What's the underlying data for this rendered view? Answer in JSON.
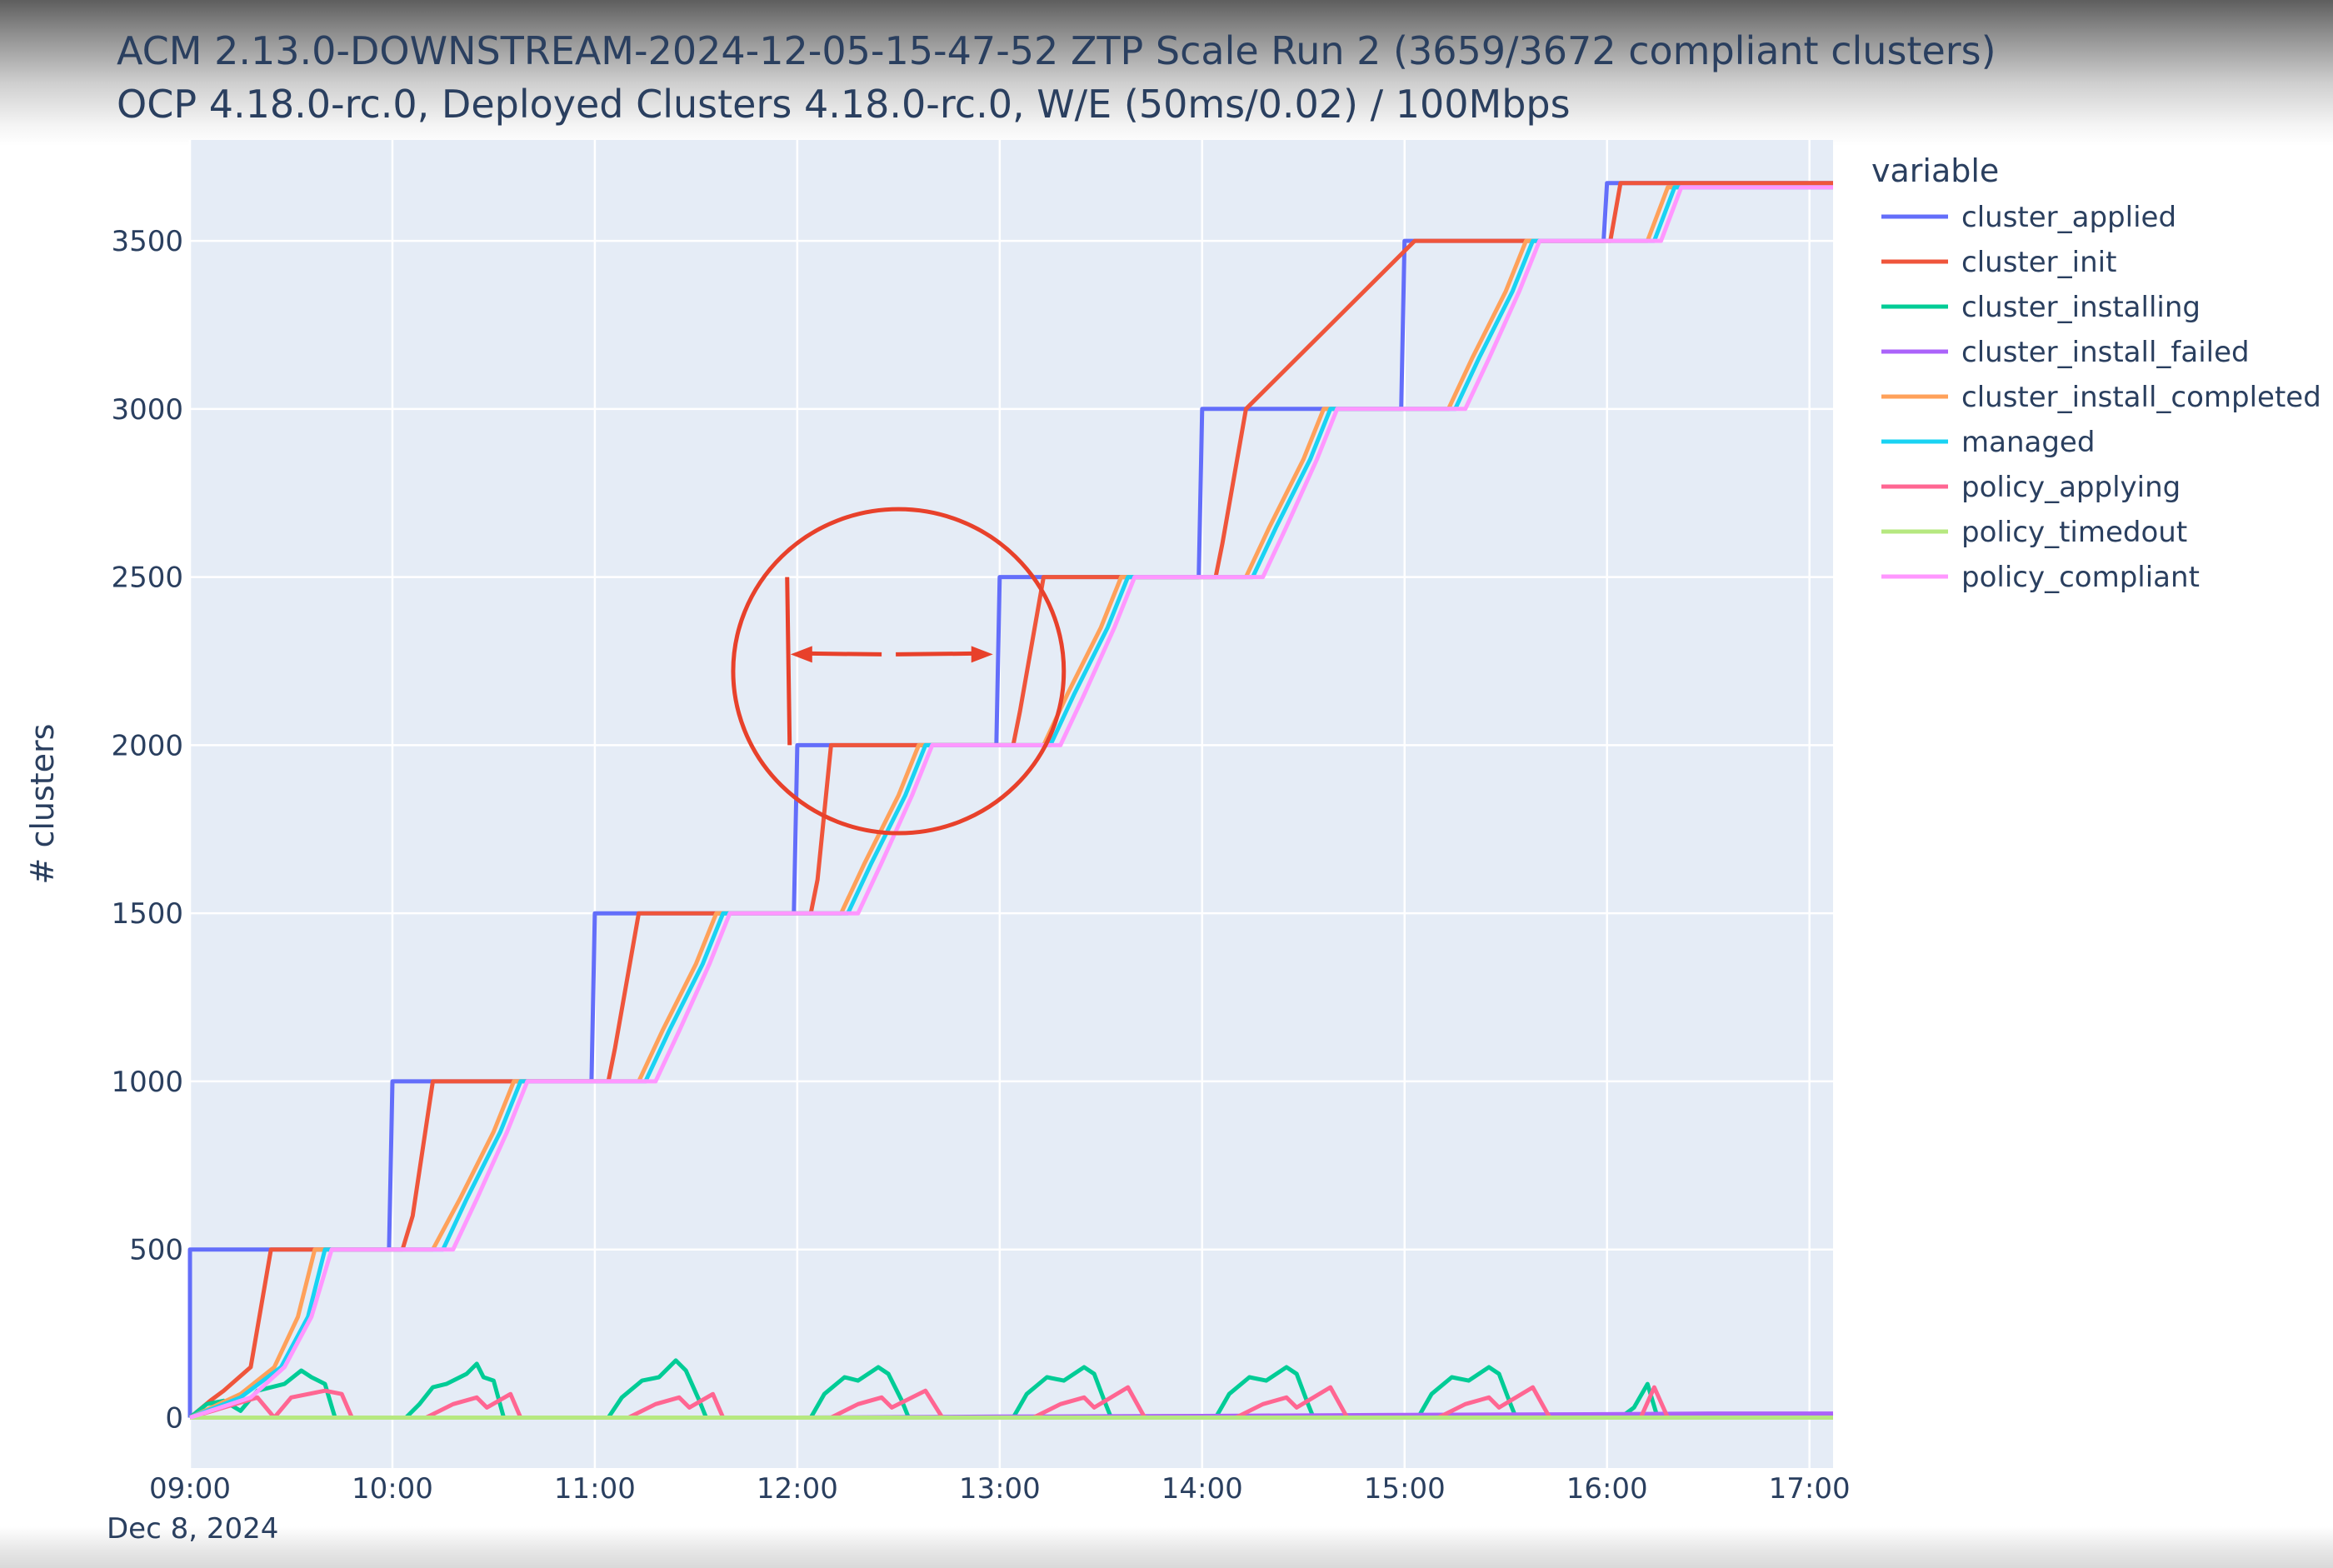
{
  "title": "ACM 2.13.0-DOWNSTREAM-2024-12-05-15-47-52 ZTP Scale Run 2 (3659/3672 compliant clusters)",
  "subtitle": "OCP 4.18.0-rc.0, Deployed Clusters 4.18.0-rc.0, W/E (50ms/0.02) / 100Mbps",
  "chart_data": {
    "type": "line",
    "xlabel": "",
    "ylabel": "# clusters",
    "x_date_label": "Dec 8, 2024",
    "xlim": [
      "09:00",
      "17:07"
    ],
    "ylim": [
      -150,
      3800
    ],
    "grid": true,
    "background_color": "#e5ecf6",
    "legend_title": "variable",
    "legend_placement": "right",
    "x_ticks": [
      "09:00",
      "10:00",
      "11:00",
      "12:00",
      "13:00",
      "14:00",
      "15:00",
      "16:00",
      "17:00"
    ],
    "y_ticks": [
      0,
      500,
      1000,
      1500,
      2000,
      2500,
      3000,
      3500
    ],
    "series": [
      {
        "name": "cluster_applied",
        "color": "#636efa",
        "points": [
          [
            "09:00",
            0
          ],
          [
            "09:00",
            500
          ],
          [
            "09:59",
            500
          ],
          [
            "10:00",
            1000
          ],
          [
            "10:59",
            1000
          ],
          [
            "11:00",
            1500
          ],
          [
            "11:59",
            1500
          ],
          [
            "12:00",
            2000
          ],
          [
            "12:59",
            2000
          ],
          [
            "13:00",
            2500
          ],
          [
            "13:59",
            2500
          ],
          [
            "14:00",
            3000
          ],
          [
            "14:59",
            3000
          ],
          [
            "15:00",
            3500
          ],
          [
            "15:59",
            3500
          ],
          [
            "16:00",
            3672
          ],
          [
            "17:07",
            3672
          ]
        ]
      },
      {
        "name": "cluster_init",
        "color": "#ef553b",
        "points": [
          [
            "09:00",
            0
          ],
          [
            "09:06",
            50
          ],
          [
            "09:10",
            80
          ],
          [
            "09:18",
            150
          ],
          [
            "09:24",
            500
          ],
          [
            "10:03",
            500
          ],
          [
            "10:06",
            600
          ],
          [
            "10:12",
            1000
          ],
          [
            "11:04",
            1000
          ],
          [
            "11:06",
            1100
          ],
          [
            "11:13",
            1500
          ],
          [
            "12:04",
            1500
          ],
          [
            "12:06",
            1600
          ],
          [
            "12:10",
            2000
          ],
          [
            "13:04",
            2000
          ],
          [
            "13:06",
            2100
          ],
          [
            "13:13",
            2500
          ],
          [
            "14:04",
            2500
          ],
          [
            "14:06",
            2600
          ],
          [
            "14:13",
            3000
          ],
          [
            "15:03",
            3500
          ],
          [
            "16:01",
            3500
          ],
          [
            "16:04",
            3672
          ],
          [
            "17:07",
            3672
          ]
        ]
      },
      {
        "name": "cluster_installing",
        "color": "#00cc96",
        "points": [
          [
            "09:00",
            0
          ],
          [
            "09:05",
            40
          ],
          [
            "09:10",
            50
          ],
          [
            "09:15",
            20
          ],
          [
            "09:20",
            80
          ],
          [
            "09:28",
            100
          ],
          [
            "09:33",
            140
          ],
          [
            "09:36",
            120
          ],
          [
            "09:40",
            100
          ],
          [
            "09:43",
            0
          ],
          [
            "10:04",
            0
          ],
          [
            "10:08",
            40
          ],
          [
            "10:12",
            90
          ],
          [
            "10:16",
            100
          ],
          [
            "10:22",
            130
          ],
          [
            "10:25",
            160
          ],
          [
            "10:27",
            120
          ],
          [
            "10:30",
            110
          ],
          [
            "10:33",
            0
          ],
          [
            "11:04",
            0
          ],
          [
            "11:08",
            60
          ],
          [
            "11:14",
            110
          ],
          [
            "11:19",
            120
          ],
          [
            "11:24",
            170
          ],
          [
            "11:27",
            140
          ],
          [
            "11:31",
            50
          ],
          [
            "11:33",
            0
          ],
          [
            "12:04",
            0
          ],
          [
            "12:08",
            70
          ],
          [
            "12:14",
            120
          ],
          [
            "12:18",
            110
          ],
          [
            "12:24",
            150
          ],
          [
            "12:27",
            130
          ],
          [
            "12:31",
            50
          ],
          [
            "12:33",
            0
          ],
          [
            "13:04",
            0
          ],
          [
            "13:08",
            70
          ],
          [
            "13:14",
            120
          ],
          [
            "13:19",
            110
          ],
          [
            "13:25",
            150
          ],
          [
            "13:28",
            130
          ],
          [
            "13:31",
            50
          ],
          [
            "13:33",
            0
          ],
          [
            "14:04",
            0
          ],
          [
            "14:08",
            70
          ],
          [
            "14:14",
            120
          ],
          [
            "14:19",
            110
          ],
          [
            "14:25",
            150
          ],
          [
            "14:28",
            130
          ],
          [
            "14:31",
            50
          ],
          [
            "14:33",
            0
          ],
          [
            "15:04",
            0
          ],
          [
            "15:08",
            70
          ],
          [
            "15:14",
            120
          ],
          [
            "15:19",
            110
          ],
          [
            "15:25",
            150
          ],
          [
            "15:28",
            130
          ],
          [
            "15:31",
            50
          ],
          [
            "15:33",
            0
          ],
          [
            "16:04",
            0
          ],
          [
            "16:08",
            30
          ],
          [
            "16:12",
            100
          ],
          [
            "16:15",
            0
          ],
          [
            "17:07",
            0
          ]
        ]
      },
      {
        "name": "cluster_install_failed",
        "color": "#ab63fa",
        "points": [
          [
            "09:00",
            0
          ],
          [
            "10:00",
            0
          ],
          [
            "11:00",
            0
          ],
          [
            "12:00",
            0
          ],
          [
            "13:00",
            3
          ],
          [
            "14:00",
            5
          ],
          [
            "15:00",
            8
          ],
          [
            "16:00",
            10
          ],
          [
            "16:30",
            12
          ],
          [
            "17:07",
            12
          ]
        ]
      },
      {
        "name": "cluster_install_completed",
        "color": "#ffa15a",
        "points": [
          [
            "09:00",
            0
          ],
          [
            "09:15",
            70
          ],
          [
            "09:25",
            150
          ],
          [
            "09:32",
            300
          ],
          [
            "09:37",
            500
          ],
          [
            "10:12",
            500
          ],
          [
            "10:20",
            650
          ],
          [
            "10:30",
            850
          ],
          [
            "10:36",
            1000
          ],
          [
            "11:13",
            1000
          ],
          [
            "11:20",
            1150
          ],
          [
            "11:30",
            1350
          ],
          [
            "11:36",
            1500
          ],
          [
            "12:13",
            1500
          ],
          [
            "12:20",
            1650
          ],
          [
            "12:30",
            1850
          ],
          [
            "12:36",
            2000
          ],
          [
            "13:13",
            2000
          ],
          [
            "13:20",
            2150
          ],
          [
            "13:30",
            2350
          ],
          [
            "13:36",
            2500
          ],
          [
            "14:13",
            2500
          ],
          [
            "14:20",
            2650
          ],
          [
            "14:30",
            2850
          ],
          [
            "14:36",
            3000
          ],
          [
            "15:13",
            3000
          ],
          [
            "15:20",
            3150
          ],
          [
            "15:30",
            3350
          ],
          [
            "15:36",
            3500
          ],
          [
            "16:12",
            3500
          ],
          [
            "16:18",
            3659
          ],
          [
            "17:07",
            3659
          ]
        ]
      },
      {
        "name": "managed",
        "color": "#19d3f3",
        "points": [
          [
            "09:00",
            0
          ],
          [
            "09:15",
            60
          ],
          [
            "09:27",
            150
          ],
          [
            "09:35",
            300
          ],
          [
            "09:40",
            500
          ],
          [
            "10:15",
            500
          ],
          [
            "10:22",
            650
          ],
          [
            "10:32",
            850
          ],
          [
            "10:38",
            1000
          ],
          [
            "11:15",
            1000
          ],
          [
            "11:22",
            1150
          ],
          [
            "11:32",
            1350
          ],
          [
            "11:38",
            1500
          ],
          [
            "12:15",
            1500
          ],
          [
            "12:22",
            1650
          ],
          [
            "12:32",
            1850
          ],
          [
            "12:38",
            2000
          ],
          [
            "13:15",
            2000
          ],
          [
            "13:22",
            2150
          ],
          [
            "13:32",
            2350
          ],
          [
            "13:38",
            2500
          ],
          [
            "14:15",
            2500
          ],
          [
            "14:22",
            2650
          ],
          [
            "14:32",
            2850
          ],
          [
            "14:38",
            3000
          ],
          [
            "15:15",
            3000
          ],
          [
            "15:22",
            3150
          ],
          [
            "15:32",
            3350
          ],
          [
            "15:38",
            3500
          ],
          [
            "16:14",
            3500
          ],
          [
            "16:20",
            3659
          ],
          [
            "17:07",
            3659
          ]
        ]
      },
      {
        "name": "policy_applying",
        "color": "#ff6692",
        "points": [
          [
            "09:00",
            0
          ],
          [
            "09:10",
            30
          ],
          [
            "09:20",
            60
          ],
          [
            "09:25",
            0
          ],
          [
            "09:30",
            60
          ],
          [
            "09:40",
            80
          ],
          [
            "09:45",
            70
          ],
          [
            "09:48",
            0
          ],
          [
            "10:10",
            0
          ],
          [
            "10:18",
            40
          ],
          [
            "10:25",
            60
          ],
          [
            "10:28",
            30
          ],
          [
            "10:35",
            70
          ],
          [
            "10:38",
            0
          ],
          [
            "11:10",
            0
          ],
          [
            "11:18",
            40
          ],
          [
            "11:25",
            60
          ],
          [
            "11:28",
            30
          ],
          [
            "11:35",
            70
          ],
          [
            "11:38",
            0
          ],
          [
            "12:10",
            0
          ],
          [
            "12:18",
            40
          ],
          [
            "12:25",
            60
          ],
          [
            "12:28",
            30
          ],
          [
            "12:38",
            80
          ],
          [
            "12:43",
            0
          ],
          [
            "13:10",
            0
          ],
          [
            "13:18",
            40
          ],
          [
            "13:25",
            60
          ],
          [
            "13:28",
            30
          ],
          [
            "13:38",
            90
          ],
          [
            "13:43",
            0
          ],
          [
            "14:10",
            0
          ],
          [
            "14:18",
            40
          ],
          [
            "14:25",
            60
          ],
          [
            "14:28",
            30
          ],
          [
            "14:38",
            90
          ],
          [
            "14:43",
            0
          ],
          [
            "15:10",
            0
          ],
          [
            "15:18",
            40
          ],
          [
            "15:25",
            60
          ],
          [
            "15:28",
            30
          ],
          [
            "15:38",
            90
          ],
          [
            "15:43",
            0
          ],
          [
            "16:10",
            0
          ],
          [
            "16:14",
            90
          ],
          [
            "16:18",
            0
          ],
          [
            "17:07",
            0
          ]
        ]
      },
      {
        "name": "policy_timedout",
        "color": "#b6e880",
        "points": [
          [
            "09:00",
            0
          ],
          [
            "17:07",
            0
          ]
        ]
      },
      {
        "name": "policy_compliant",
        "color": "#ff97ff",
        "points": [
          [
            "09:00",
            0
          ],
          [
            "09:18",
            60
          ],
          [
            "09:28",
            150
          ],
          [
            "09:36",
            300
          ],
          [
            "09:42",
            500
          ],
          [
            "10:18",
            500
          ],
          [
            "10:25",
            650
          ],
          [
            "10:34",
            850
          ],
          [
            "10:40",
            1000
          ],
          [
            "11:18",
            1000
          ],
          [
            "11:25",
            1150
          ],
          [
            "11:34",
            1350
          ],
          [
            "11:40",
            1500
          ],
          [
            "12:18",
            1500
          ],
          [
            "12:25",
            1650
          ],
          [
            "12:34",
            1850
          ],
          [
            "12:40",
            2000
          ],
          [
            "13:18",
            2000
          ],
          [
            "13:25",
            2150
          ],
          [
            "13:34",
            2350
          ],
          [
            "13:40",
            2500
          ],
          [
            "14:18",
            2500
          ],
          [
            "14:25",
            2650
          ],
          [
            "14:34",
            2850
          ],
          [
            "14:40",
            3000
          ],
          [
            "15:18",
            3000
          ],
          [
            "15:25",
            3150
          ],
          [
            "15:34",
            3350
          ],
          [
            "15:40",
            3500
          ],
          [
            "16:16",
            3500
          ],
          [
            "16:22",
            3659
          ],
          [
            "17:07",
            3659
          ]
        ]
      }
    ]
  },
  "annotation": {
    "shape": "circle",
    "center": [
      "12:30",
      2220
    ],
    "radius_x_minutes": 49,
    "color": "#e8412b",
    "marker_line_x": "11:57",
    "marker_line_y": [
      2000,
      2500
    ],
    "arrow_y": 2270,
    "arrow_from": "11:58",
    "arrow_to": "12:58"
  }
}
